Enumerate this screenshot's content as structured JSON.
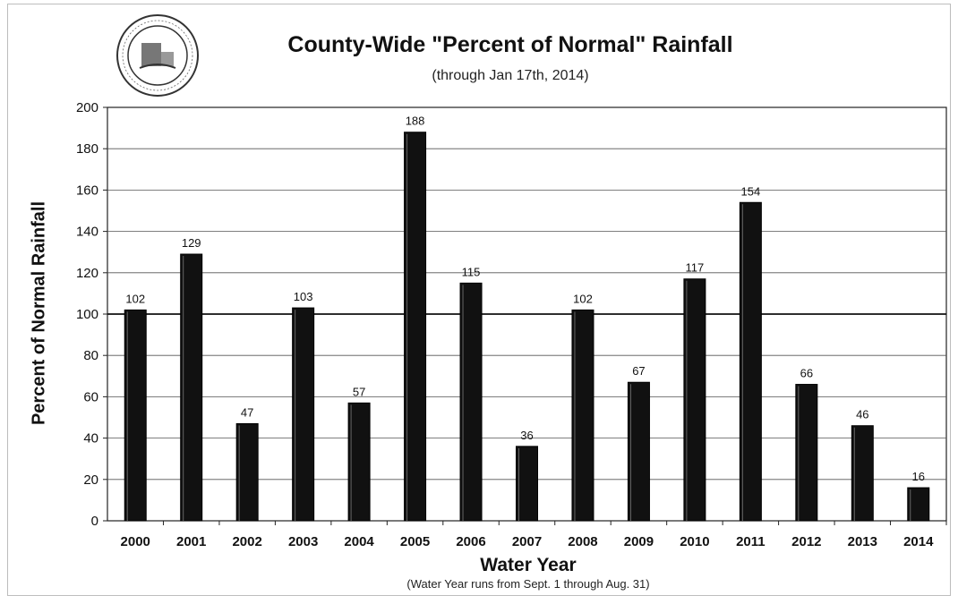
{
  "chart_data": {
    "type": "bar",
    "title": "County-Wide \"Percent of Normal\" Rainfall",
    "subtitle": "(through Jan 17th, 2014)",
    "xlabel": "Water Year",
    "xnote": "(Water Year runs from Sept. 1 through Aug. 31)",
    "ylabel": "Percent of Normal Rainfall",
    "categories": [
      "2000",
      "2001",
      "2002",
      "2003",
      "2004",
      "2005",
      "2006",
      "2007",
      "2008",
      "2009",
      "2010",
      "2011",
      "2012",
      "2013",
      "2014"
    ],
    "values": [
      102,
      129,
      47,
      103,
      57,
      188,
      115,
      36,
      102,
      67,
      117,
      154,
      66,
      46,
      16
    ],
    "ylim": [
      0,
      200
    ],
    "ytick_step": 20,
    "reference_line": 100,
    "grid": true,
    "data_labels": true,
    "bar_color": "#111111"
  }
}
